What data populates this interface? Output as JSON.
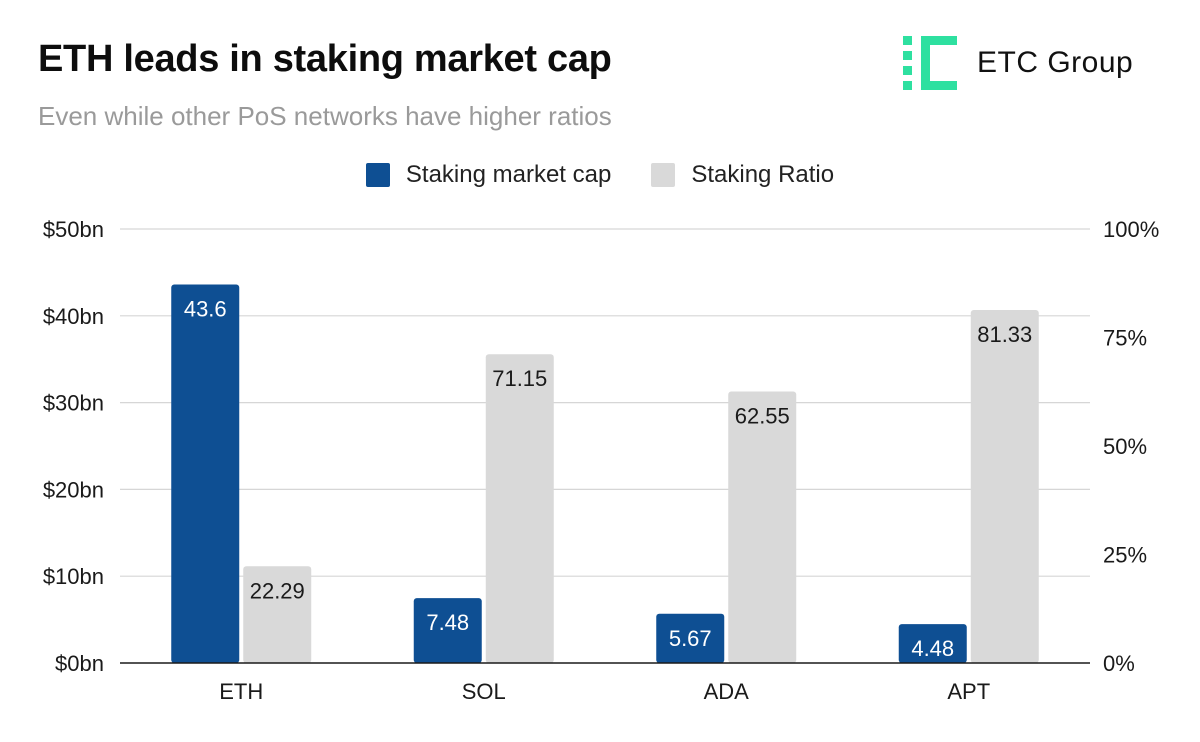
{
  "header": {
    "title": "ETH leads in staking market cap",
    "subtitle": "Even while other PoS networks have higher ratios",
    "brand_name": "ETC Group",
    "brand_color": "#2ee0a0"
  },
  "chart_data": {
    "type": "bar",
    "title": "ETH leads in staking market cap",
    "subtitle": "Even while other PoS networks have higher ratios",
    "categories": [
      "ETH",
      "SOL",
      "ADA",
      "APT"
    ],
    "series": [
      {
        "name": "Staking market cap",
        "axis": "left",
        "color": "#0e4f93",
        "values": [
          43.6,
          7.48,
          5.67,
          4.48
        ],
        "labels": [
          "43.6",
          "7.48",
          "5.67",
          "4.48"
        ]
      },
      {
        "name": "Staking Ratio",
        "axis": "right",
        "color": "#d9d9d9",
        "values": [
          22.29,
          71.15,
          62.55,
          81.33
        ],
        "labels": [
          "22.29",
          "71.15",
          "62.55",
          "81.33"
        ]
      }
    ],
    "y_left": {
      "min": 0,
      "max": 50,
      "ticks": [
        0,
        10,
        20,
        30,
        40,
        50
      ],
      "tick_labels": [
        "$0bn",
        "$10bn",
        "$20bn",
        "$30bn",
        "$40bn",
        "$50bn"
      ]
    },
    "y_right": {
      "min": 0,
      "max": 100,
      "ticks": [
        0,
        25,
        50,
        75,
        100
      ],
      "tick_labels": [
        "0%",
        "25%",
        "50%",
        "75%",
        "100%"
      ]
    },
    "xlabel": "",
    "ylabel": "",
    "grid": true,
    "legend_position": "top-center"
  }
}
